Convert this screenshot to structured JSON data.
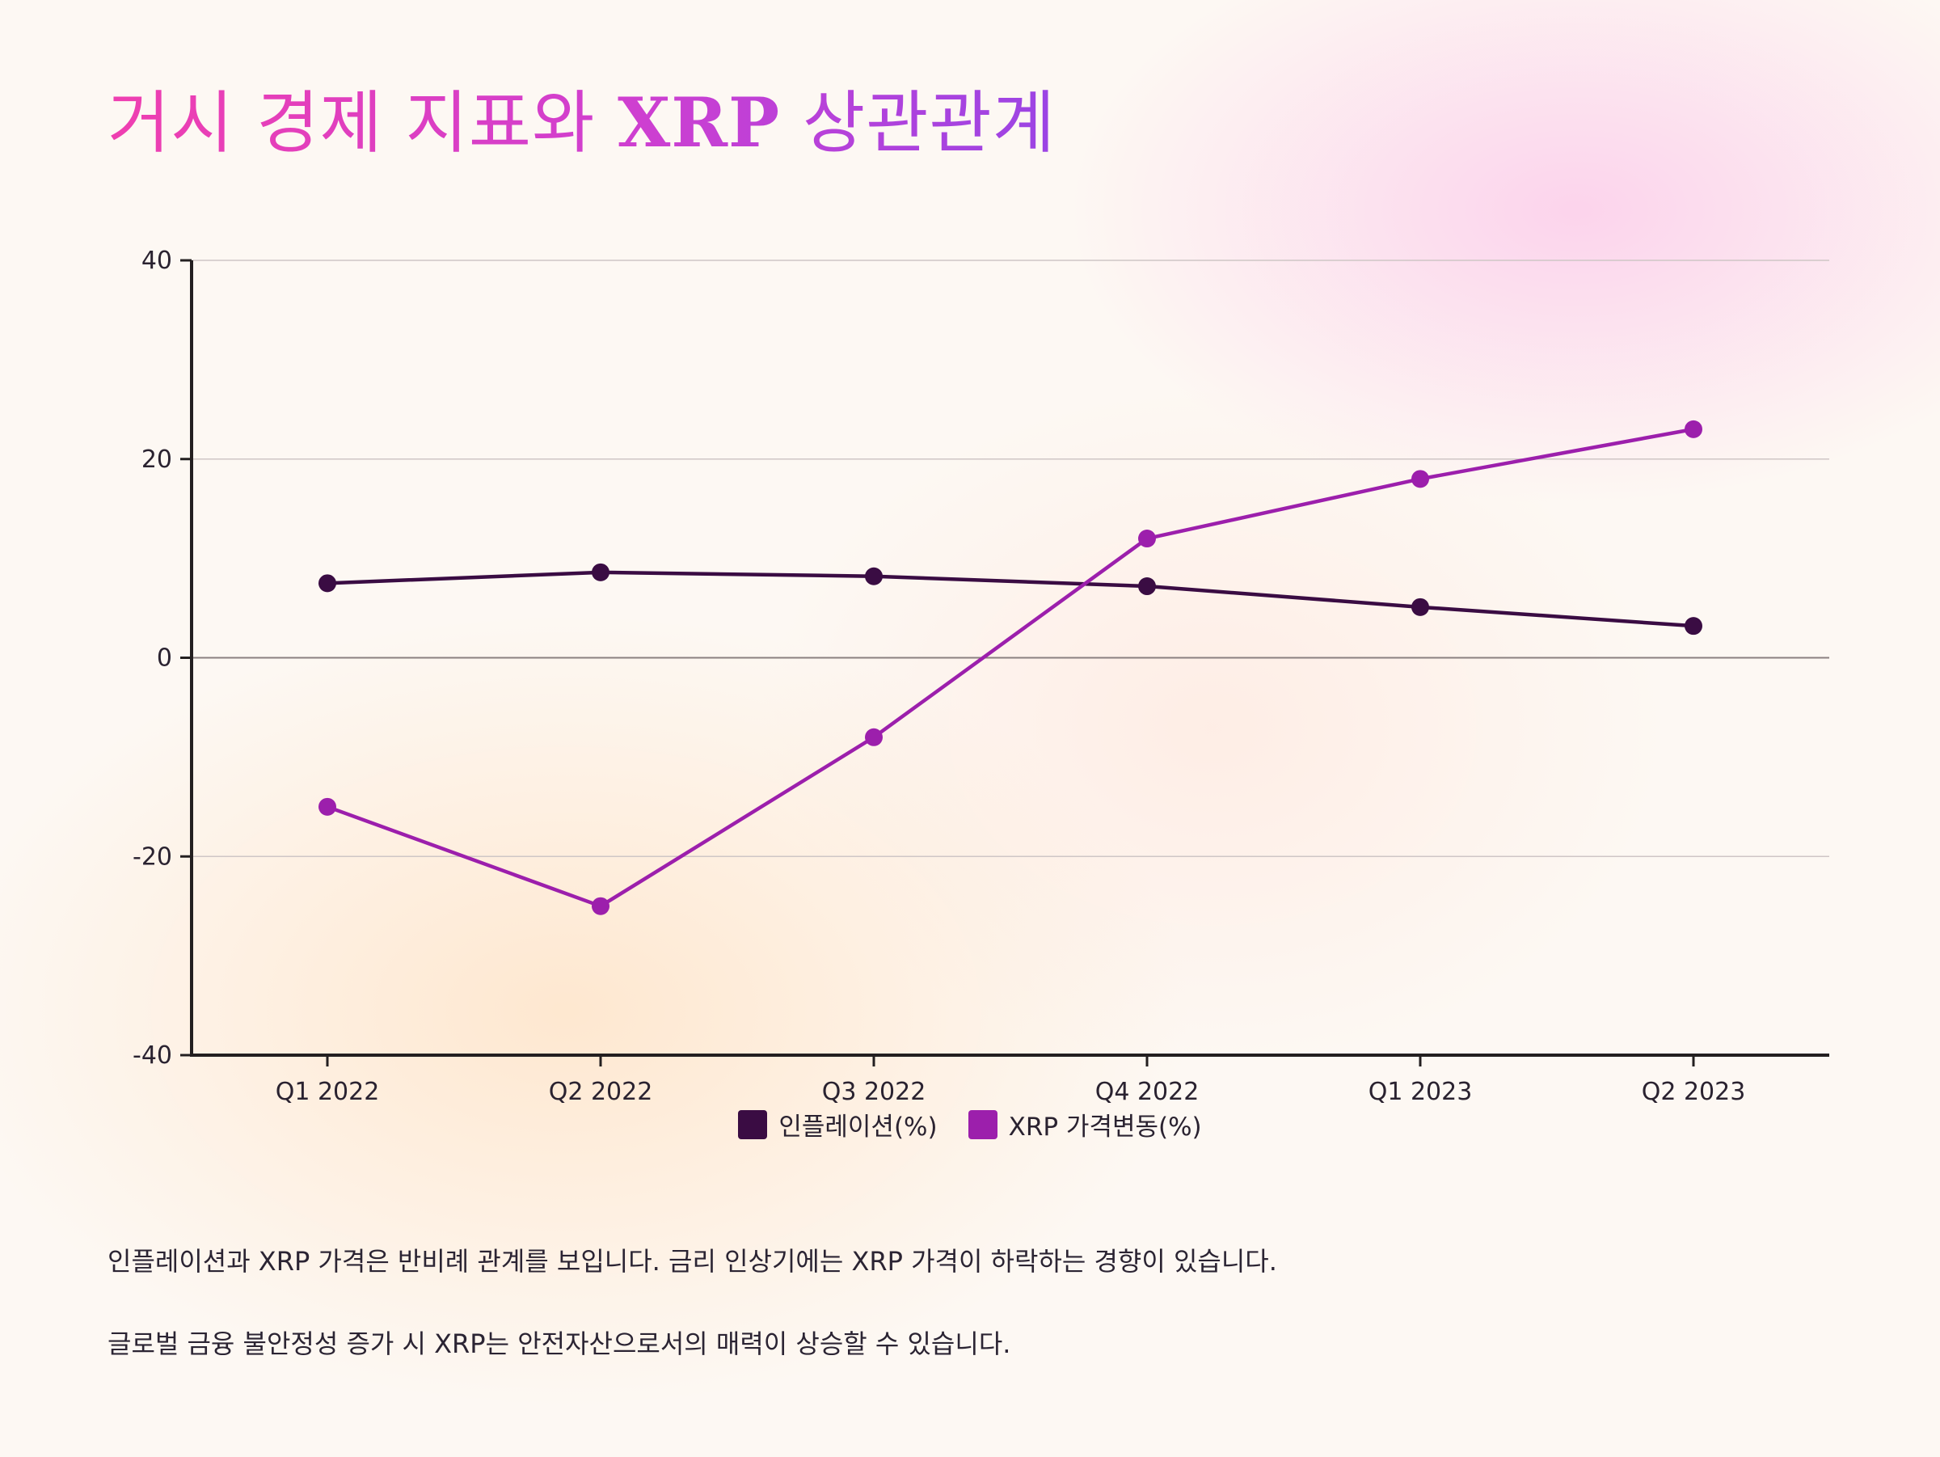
{
  "page": {
    "title_prefix": "거시 경제 지표와 ",
    "title_xrp": "XRP",
    "title_suffix": " 상관관계"
  },
  "colors": {
    "inflation": "#3a0c43",
    "xrp": "#9c1fac",
    "axis": "#231f20",
    "grid": "#cfc6c6",
    "zero_line": "#8a8080"
  },
  "chart_data": {
    "type": "line",
    "categories": [
      "Q1 2022",
      "Q2 2022",
      "Q3 2022",
      "Q4 2022",
      "Q1 2023",
      "Q2 2023"
    ],
    "series": [
      {
        "name": "인플레이션(%)",
        "color": "#3a0c43",
        "values": [
          7.5,
          8.6,
          8.2,
          7.2,
          5.1,
          3.2
        ]
      },
      {
        "name": "XRP 가격변동(%)",
        "color": "#9c1fac",
        "values": [
          -15,
          -25,
          -8,
          12,
          18,
          23
        ]
      }
    ],
    "yticks": [
      40,
      20,
      0,
      -20,
      -40
    ],
    "ylim": [
      -40,
      40
    ],
    "grid": true,
    "legend_position": "bottom-center",
    "xlabel": "",
    "ylabel": ""
  },
  "notes": [
    "인플레이션과 XRP 가격은 반비례 관계를 보입니다. 금리 인상기에는 XRP 가격이 하락하는 경향이 있습니다.",
    "글로벌 금융 불안정성 증가 시 XRP는 안전자산으로서의 매력이 상승할 수 있습니다."
  ]
}
